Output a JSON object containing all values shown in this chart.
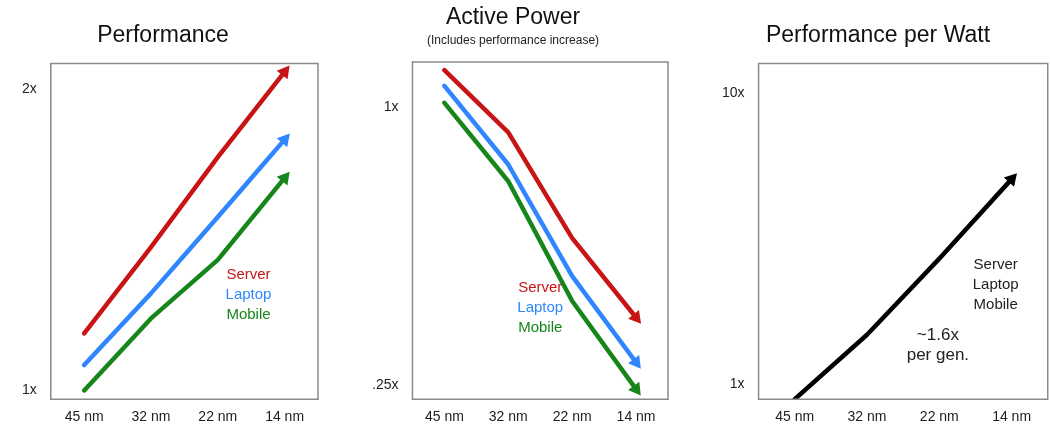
{
  "chart_data": [
    {
      "type": "line",
      "title": "Performance",
      "categories": [
        "45 nm",
        "32 nm",
        "22 nm",
        "14 nm"
      ],
      "series": [
        {
          "name": "Server",
          "color": "#c81414",
          "values": [
            1.14,
            1.39,
            1.71,
            2.08
          ]
        },
        {
          "name": "Laptop",
          "color": "#2f86ff",
          "values": [
            1.06,
            1.25,
            1.49,
            1.78
          ]
        },
        {
          "name": "Mobile",
          "color": "#16861a",
          "values": [
            1.0,
            1.18,
            1.35,
            1.63
          ]
        }
      ],
      "log": true,
      "ylim": [
        0.98,
        2.12
      ],
      "yticks": [
        {
          "value": 1,
          "label": "1x"
        },
        {
          "value": 2,
          "label": "2x"
        }
      ],
      "grid": false,
      "legend": "bottom right",
      "marker": "none",
      "line_style": "solid"
    },
    {
      "type": "line",
      "title": "Active Power",
      "subtitle": "(Includes performance increase)",
      "categories": [
        "45 nm",
        "32 nm",
        "22 nm",
        "14 nm"
      ],
      "series": [
        {
          "name": "Server",
          "color": "#c81414",
          "values": [
            1.2,
            0.88,
            0.52,
            0.35
          ]
        },
        {
          "name": "Laptop",
          "color": "#2f86ff",
          "values": [
            1.11,
            0.75,
            0.43,
            0.28
          ]
        },
        {
          "name": "Mobile",
          "color": "#16861a",
          "values": [
            1.02,
            0.69,
            0.38,
            0.245
          ]
        }
      ],
      "log": true,
      "ylim": [
        0.233,
        1.25
      ],
      "yticks": [
        {
          "value": 0.25,
          "label": ".25x"
        },
        {
          "value": 1,
          "label": "1x"
        }
      ],
      "grid": false,
      "legend": "bottom",
      "marker": "none",
      "line_style": "solid"
    },
    {
      "type": "line",
      "title": "Performance per Watt",
      "categories": [
        "45 nm",
        "32 nm",
        "22 nm",
        "14 nm"
      ],
      "series": [
        {
          "color": "#000000",
          "values": [
            0.89,
            1.48,
            2.7,
            5.06
          ]
        }
      ],
      "log": true,
      "ylim": [
        0.89,
        12.6
      ],
      "yticks": [
        {
          "value": 1,
          "label": "1x"
        },
        {
          "value": 10,
          "label": "10x"
        }
      ],
      "grid": false,
      "marker": "none",
      "line_style": "solid",
      "annotations": [
        "Server",
        "Laptop",
        "Mobile",
        "~1.6x",
        "per gen."
      ]
    }
  ]
}
